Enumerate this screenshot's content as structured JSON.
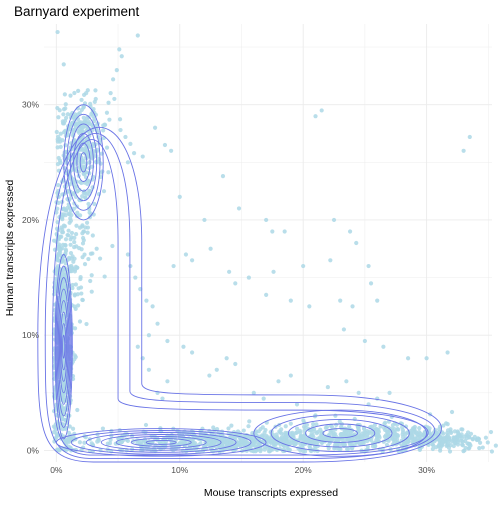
{
  "chart_data": {
    "type": "scatter",
    "title": "Barnyard experiment",
    "xlabel": "Mouse transcripts expressed",
    "ylabel": "Human transcripts expressed",
    "xlim": [
      -0.01,
      0.353
    ],
    "ylim": [
      -0.01,
      0.37
    ],
    "x_ticks": [
      0,
      0.1,
      0.2,
      0.3
    ],
    "x_tick_labels": [
      "0%",
      "10%",
      "20%",
      "30%"
    ],
    "y_ticks": [
      0,
      0.1,
      0.2,
      0.3
    ],
    "y_tick_labels": [
      "0%",
      "10%",
      "20%",
      "30%"
    ],
    "grid": true,
    "point_color": "#add8e6",
    "contour_color": "#6a74e6",
    "series": [
      {
        "values": [
          [
            0.001,
            0.363
          ],
          [
            0.006,
            0.335
          ],
          [
            0.066,
            0.36
          ],
          [
            0.051,
            0.348
          ],
          [
            0.053,
            0.342
          ],
          [
            0.049,
            0.33
          ],
          [
            0.046,
            0.322
          ],
          [
            0.044,
            0.31
          ],
          [
            0.047,
            0.305
          ],
          [
            0.041,
            0.293
          ],
          [
            0.043,
            0.287
          ],
          [
            0.038,
            0.282
          ],
          [
            0.052,
            0.278
          ],
          [
            0.056,
            0.272
          ],
          [
            0.06,
            0.266
          ],
          [
            0.063,
            0.258
          ],
          [
            0.058,
            0.25
          ],
          [
            0.07,
            0.255
          ],
          [
            0.08,
            0.28
          ],
          [
            0.088,
            0.265
          ],
          [
            0.093,
            0.26
          ],
          [
            0.1,
            0.22
          ],
          [
            0.135,
            0.238
          ],
          [
            0.148,
            0.21
          ],
          [
            0.12,
            0.2
          ],
          [
            0.17,
            0.2
          ],
          [
            0.175,
            0.19
          ],
          [
            0.185,
            0.19
          ],
          [
            0.21,
            0.29
          ],
          [
            0.215,
            0.295
          ],
          [
            0.225,
            0.2
          ],
          [
            0.238,
            0.19
          ],
          [
            0.243,
            0.18
          ],
          [
            0.253,
            0.16
          ],
          [
            0.255,
            0.145
          ],
          [
            0.26,
            0.13
          ],
          [
            0.095,
            0.16
          ],
          [
            0.105,
            0.17
          ],
          [
            0.11,
            0.165
          ],
          [
            0.125,
            0.175
          ],
          [
            0.14,
            0.155
          ],
          [
            0.156,
            0.15
          ],
          [
            0.176,
            0.155
          ],
          [
            0.2,
            0.16
          ],
          [
            0.222,
            0.165
          ],
          [
            0.23,
            0.13
          ],
          [
            0.24,
            0.125
          ],
          [
            0.233,
            0.105
          ],
          [
            0.25,
            0.095
          ],
          [
            0.265,
            0.09
          ],
          [
            0.285,
            0.08
          ],
          [
            0.3,
            0.08
          ],
          [
            0.317,
            0.085
          ],
          [
            0.33,
            0.26
          ],
          [
            0.335,
            0.272
          ],
          [
            0.16,
            0.05
          ],
          [
            0.168,
            0.045
          ],
          [
            0.18,
            0.06
          ],
          [
            0.19,
            0.065
          ],
          [
            0.195,
            0.04
          ],
          [
            0.22,
            0.055
          ],
          [
            0.235,
            0.06
          ],
          [
            0.245,
            0.05
          ],
          [
            0.253,
            0.04
          ],
          [
            0.26,
            0.045
          ],
          [
            0.27,
            0.05
          ],
          [
            0.13,
            0.07
          ],
          [
            0.138,
            0.08
          ],
          [
            0.145,
            0.075
          ],
          [
            0.124,
            0.065
          ],
          [
            0.082,
            0.05
          ],
          [
            0.086,
            0.045
          ],
          [
            0.09,
            0.06
          ],
          [
            0.075,
            0.07
          ],
          [
            0.07,
            0.08
          ],
          [
            0.066,
            0.09
          ],
          [
            0.082,
            0.11
          ],
          [
            0.078,
            0.125
          ],
          [
            0.073,
            0.13
          ],
          [
            0.068,
            0.14
          ],
          [
            0.064,
            0.15
          ],
          [
            0.06,
            0.16
          ],
          [
            0.058,
            0.17
          ],
          [
            0.075,
            0.1
          ],
          [
            0.09,
            0.095
          ],
          [
            0.103,
            0.09
          ],
          [
            0.11,
            0.085
          ],
          [
            0.145,
            0.145
          ],
          [
            0.17,
            0.135
          ],
          [
            0.19,
            0.13
          ],
          [
            0.205,
            0.125
          ]
        ]
      }
    ]
  }
}
